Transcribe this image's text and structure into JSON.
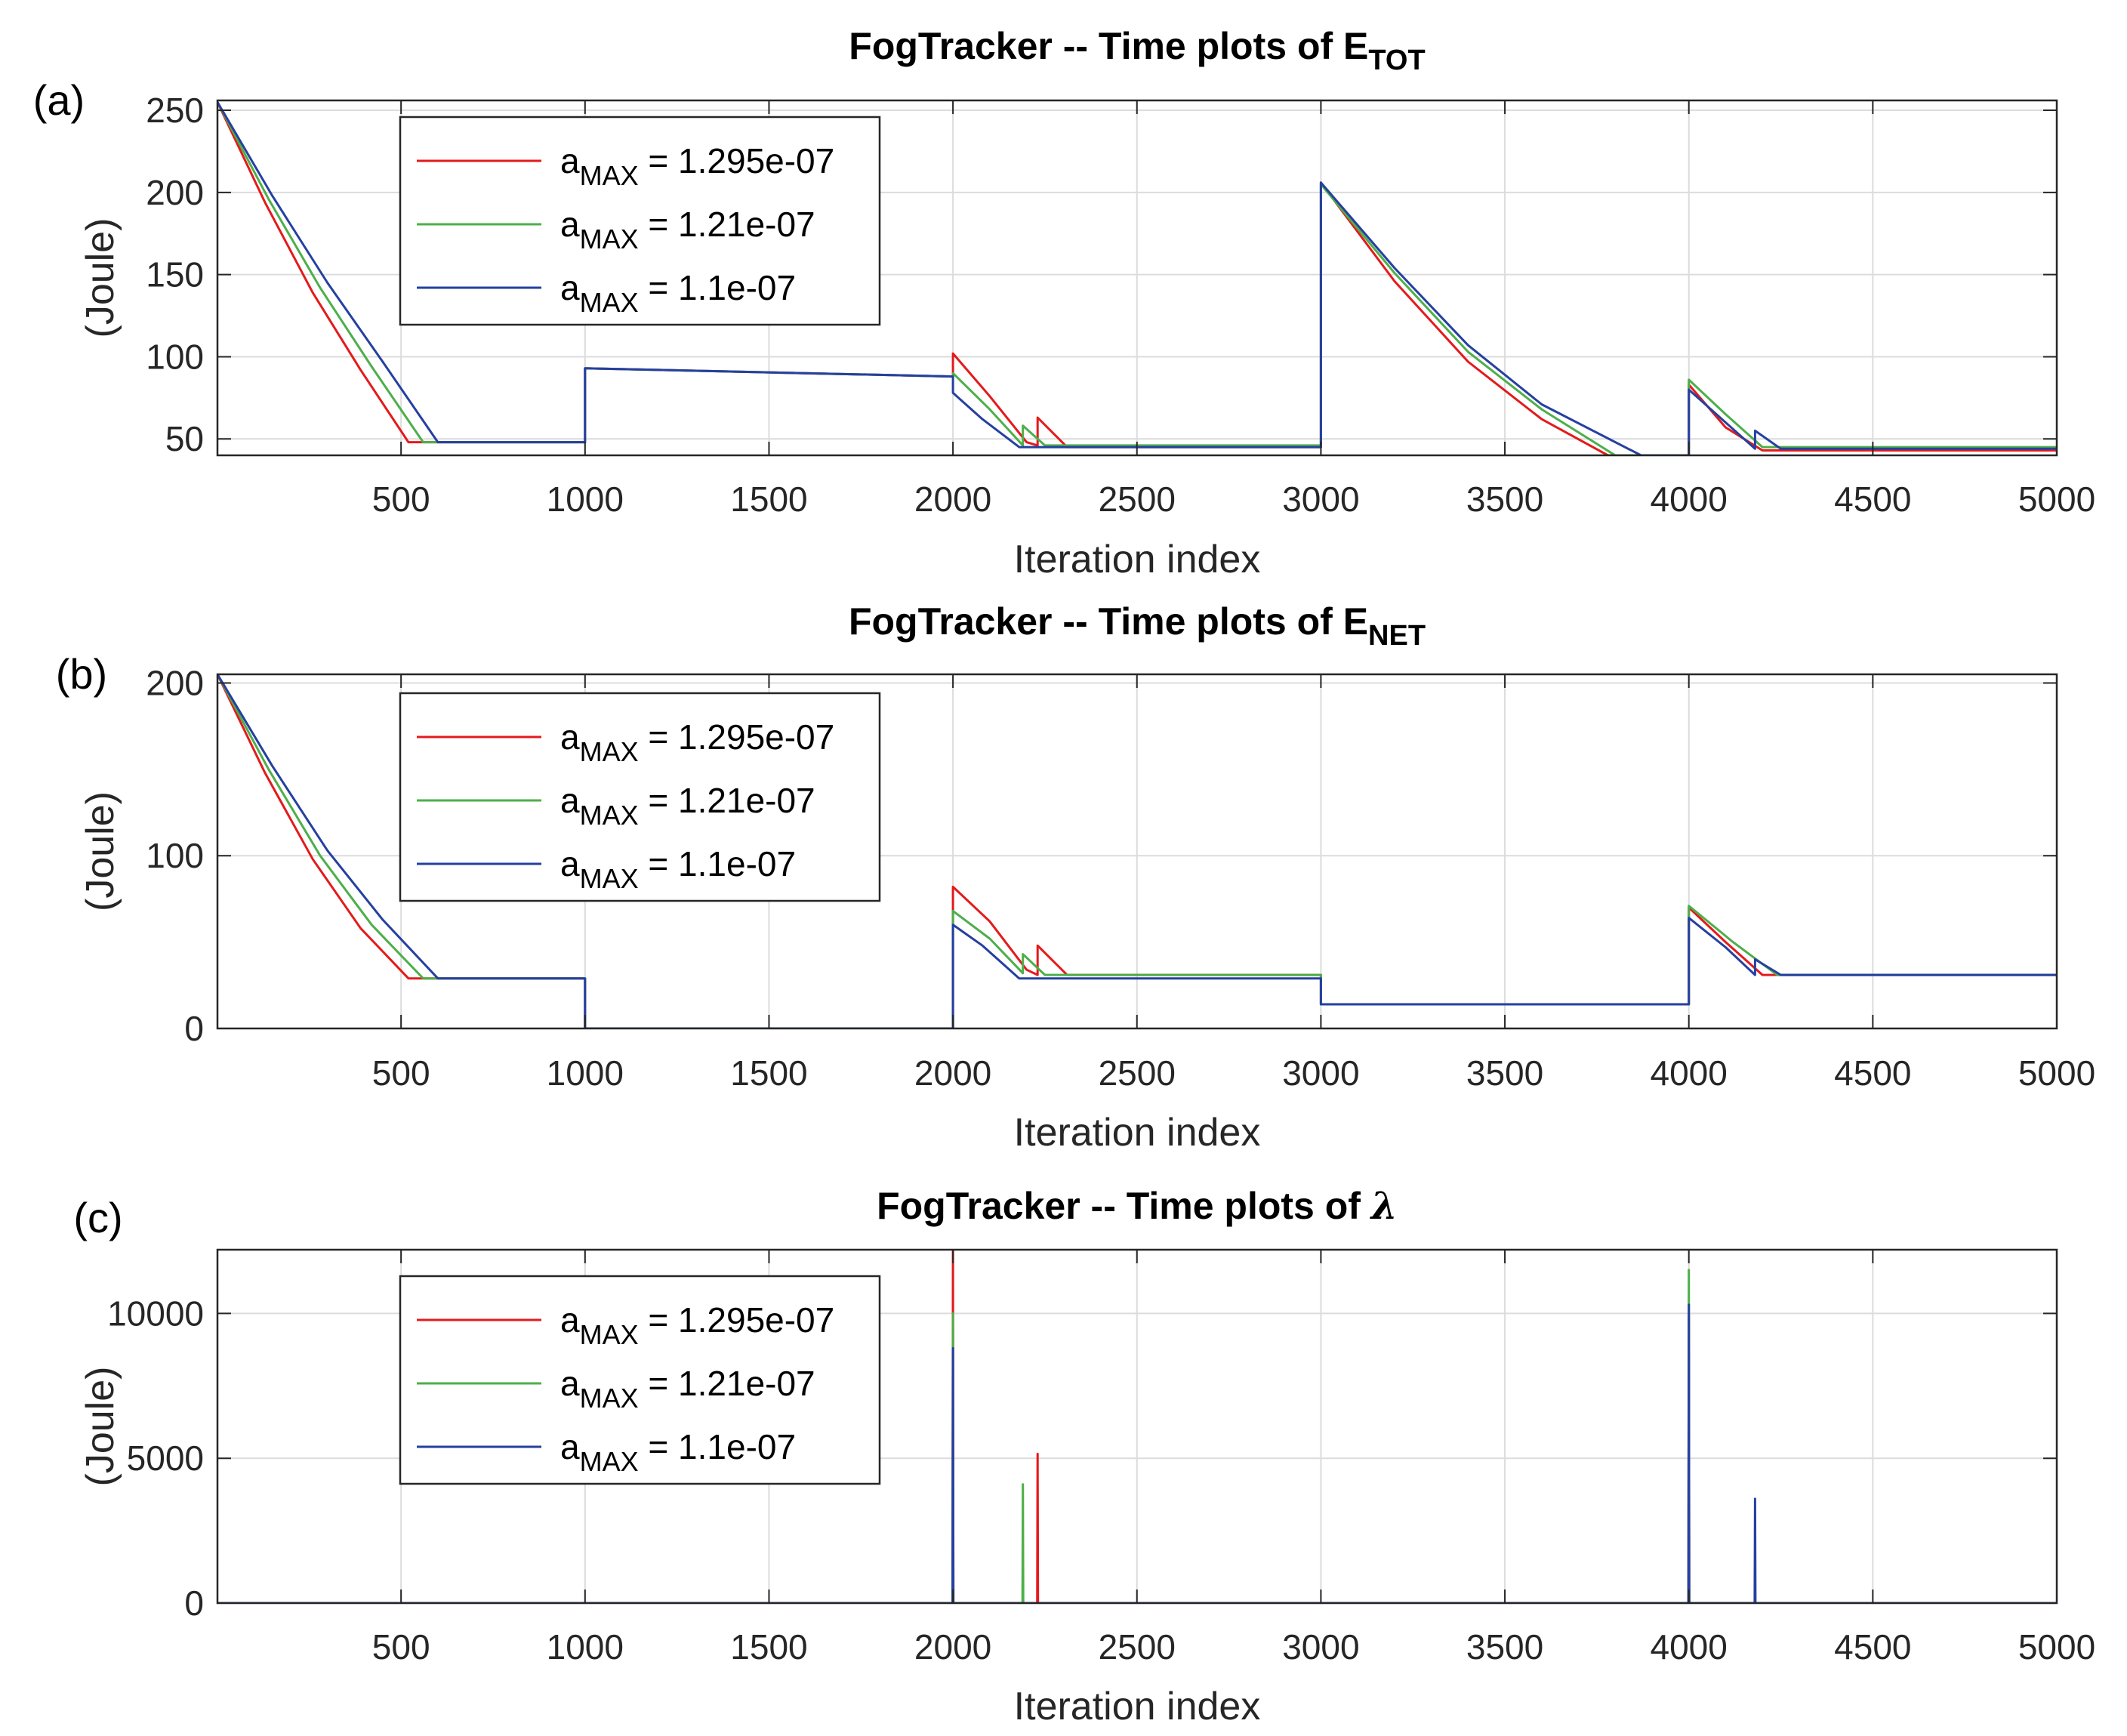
{
  "chart_data": [
    {
      "panel_label": "(a)",
      "type": "line",
      "title": {
        "main": "FogTracker -- Time plots of E",
        "sub": "TOT"
      },
      "xlabel": "Iteration index",
      "ylabel": "(Joule)",
      "xlim": [
        1,
        5000
      ],
      "ylim": [
        40,
        256
      ],
      "xticks": [
        500,
        1000,
        1500,
        2000,
        2500,
        3000,
        3500,
        4000,
        4500,
        5000
      ],
      "xtick_labels": [
        "500",
        "1000",
        "1500",
        "2000",
        "2500",
        "3000",
        "3500",
        "4000",
        "4500",
        "5000"
      ],
      "yticks": [
        50,
        100,
        150,
        200,
        250
      ],
      "ytick_labels": [
        "50",
        "100",
        "150",
        "200",
        "250"
      ],
      "grid": true,
      "legend_position": "top-left",
      "series": [
        {
          "name": "aMAX = 1.295e-07",
          "legend": {
            "sym": "a",
            "sub": "MAX",
            "rest": " = 1.295e-07"
          },
          "color": "#e41a1c",
          "points": [
            [
              1,
              255
            ],
            [
              130,
              194
            ],
            [
              260,
              139
            ],
            [
              390,
              92
            ],
            [
              520,
              48
            ],
            [
              1000,
              48
            ],
            [
              1000,
              93
            ],
            [
              2000,
              88
            ],
            [
              2000,
              102
            ],
            [
              2100,
              76
            ],
            [
              2200,
              48
            ],
            [
              2230,
              46
            ],
            [
              2230,
              63
            ],
            [
              2310,
              45
            ],
            [
              3000,
              45
            ],
            [
              3000,
              206
            ],
            [
              3200,
              146
            ],
            [
              3400,
              97
            ],
            [
              3600,
              62
            ],
            [
              3780,
              40
            ],
            [
              4000,
              40
            ],
            [
              4000,
              83
            ],
            [
              4100,
              57
            ],
            [
              4200,
              43
            ],
            [
              5000,
              43
            ]
          ]
        },
        {
          "name": "aMAX = 1.21e-07",
          "legend": {
            "sym": "a",
            "sub": "MAX",
            "rest": " = 1.21e-07"
          },
          "color": "#4daf4a",
          "points": [
            [
              1,
              255
            ],
            [
              140,
              196
            ],
            [
              280,
              142
            ],
            [
              420,
              94
            ],
            [
              560,
              48
            ],
            [
              1000,
              48
            ],
            [
              1000,
              93
            ],
            [
              2000,
              88
            ],
            [
              2000,
              90
            ],
            [
              2100,
              68
            ],
            [
              2190,
              46
            ],
            [
              2190,
              58
            ],
            [
              2250,
              46
            ],
            [
              3000,
              46
            ],
            [
              3000,
              205
            ],
            [
              3200,
              151
            ],
            [
              3400,
              103
            ],
            [
              3600,
              68
            ],
            [
              3800,
              40
            ],
            [
              4000,
              40
            ],
            [
              4000,
              86
            ],
            [
              4100,
              65
            ],
            [
              4200,
              45
            ],
            [
              5000,
              45
            ]
          ]
        },
        {
          "name": "aMAX = 1.1e-07",
          "legend": {
            "sym": "a",
            "sub": "MAX",
            "rest": " = 1.1e-07"
          },
          "color": "#2540a0",
          "points": [
            [
              1,
              255
            ],
            [
              150,
              198
            ],
            [
              300,
              145
            ],
            [
              450,
              97
            ],
            [
              600,
              48
            ],
            [
              1000,
              48
            ],
            [
              1000,
              93
            ],
            [
              2000,
              88
            ],
            [
              2000,
              78
            ],
            [
              2080,
              62
            ],
            [
              2180,
              45
            ],
            [
              3000,
              45
            ],
            [
              3000,
              206
            ],
            [
              3200,
              154
            ],
            [
              3400,
              107
            ],
            [
              3600,
              71
            ],
            [
              3870,
              40
            ],
            [
              4000,
              40
            ],
            [
              4000,
              80
            ],
            [
              4100,
              60
            ],
            [
              4180,
              44
            ],
            [
              4180,
              55
            ],
            [
              4250,
              44
            ],
            [
              5000,
              44
            ]
          ]
        }
      ]
    },
    {
      "panel_label": "(b)",
      "type": "line",
      "title": {
        "main": "FogTracker -- Time plots of E",
        "sub": "NET"
      },
      "xlabel": "Iteration index",
      "ylabel": "(Joule)",
      "xlim": [
        1,
        5000
      ],
      "ylim": [
        0,
        205
      ],
      "xticks": [
        500,
        1000,
        1500,
        2000,
        2500,
        3000,
        3500,
        4000,
        4500,
        5000
      ],
      "xtick_labels": [
        "500",
        "1000",
        "1500",
        "2000",
        "2500",
        "3000",
        "3500",
        "4000",
        "4500",
        "5000"
      ],
      "yticks": [
        0,
        100,
        200
      ],
      "ytick_labels": [
        "0",
        "100",
        "200"
      ],
      "grid": true,
      "legend_position": "top-left",
      "series": [
        {
          "name": "aMAX = 1.295e-07",
          "legend": {
            "sym": "a",
            "sub": "MAX",
            "rest": " = 1.295e-07"
          },
          "color": "#e41a1c",
          "points": [
            [
              1,
              205
            ],
            [
              130,
              148
            ],
            [
              260,
              98
            ],
            [
              390,
              58
            ],
            [
              520,
              29
            ],
            [
              1000,
              29
            ],
            [
              1000,
              0
            ],
            [
              2000,
              0
            ],
            [
              2000,
              82
            ],
            [
              2100,
              62
            ],
            [
              2200,
              34
            ],
            [
              2230,
              31
            ],
            [
              2230,
              48
            ],
            [
              2310,
              31
            ],
            [
              3000,
              31
            ],
            [
              3000,
              14
            ],
            [
              4000,
              14
            ],
            [
              4000,
              70
            ],
            [
              4100,
              50
            ],
            [
              4200,
              31
            ],
            [
              5000,
              31
            ]
          ]
        },
        {
          "name": "aMAX = 1.21e-07",
          "legend": {
            "sym": "a",
            "sub": "MAX",
            "rest": " = 1.21e-07"
          },
          "color": "#4daf4a",
          "points": [
            [
              1,
              205
            ],
            [
              140,
              150
            ],
            [
              280,
              100
            ],
            [
              420,
              60
            ],
            [
              560,
              29
            ],
            [
              1000,
              29
            ],
            [
              1000,
              0
            ],
            [
              2000,
              0
            ],
            [
              2000,
              68
            ],
            [
              2100,
              52
            ],
            [
              2190,
              32
            ],
            [
              2190,
              43
            ],
            [
              2250,
              31
            ],
            [
              3000,
              31
            ],
            [
              3000,
              14
            ],
            [
              4000,
              14
            ],
            [
              4000,
              71
            ],
            [
              4120,
              50
            ],
            [
              4240,
              31
            ],
            [
              5000,
              31
            ]
          ]
        },
        {
          "name": "aMAX = 1.1e-07",
          "legend": {
            "sym": "a",
            "sub": "MAX",
            "rest": " = 1.1e-07"
          },
          "color": "#2540a0",
          "points": [
            [
              1,
              205
            ],
            [
              150,
              152
            ],
            [
              300,
              103
            ],
            [
              450,
              63
            ],
            [
              600,
              29
            ],
            [
              1000,
              29
            ],
            [
              1000,
              0
            ],
            [
              2000,
              0
            ],
            [
              2000,
              60
            ],
            [
              2080,
              48
            ],
            [
              2180,
              29
            ],
            [
              3000,
              29
            ],
            [
              3000,
              14
            ],
            [
              4000,
              14
            ],
            [
              4000,
              64
            ],
            [
              4100,
              47
            ],
            [
              4180,
              31
            ],
            [
              4180,
              40
            ],
            [
              4250,
              31
            ],
            [
              5000,
              31
            ]
          ]
        }
      ]
    },
    {
      "panel_label": "(c)",
      "type": "line",
      "title": {
        "main": "FogTracker -- Time plots of ",
        "sym": "λ"
      },
      "xlabel": "Iteration index",
      "ylabel": "(Joule)",
      "xlim": [
        1,
        5000
      ],
      "ylim": [
        0,
        12200
      ],
      "xticks": [
        500,
        1000,
        1500,
        2000,
        2500,
        3000,
        3500,
        4000,
        4500,
        5000
      ],
      "xtick_labels": [
        "500",
        "1000",
        "1500",
        "2000",
        "2500",
        "3000",
        "3500",
        "4000",
        "4500",
        "5000"
      ],
      "yticks": [
        0,
        5000,
        10000
      ],
      "ytick_labels": [
        "0",
        "5000",
        "10000"
      ],
      "grid": true,
      "legend_position": "top-left",
      "series": [
        {
          "name": "aMAX = 1.295e-07",
          "legend": {
            "sym": "a",
            "sub": "MAX",
            "rest": " = 1.295e-07"
          },
          "color": "#e41a1c",
          "points": [
            [
              1,
              0
            ],
            [
              1999,
              0
            ],
            [
              2000,
              12200
            ],
            [
              2001,
              0
            ],
            [
              2229,
              0
            ],
            [
              2230,
              5150
            ],
            [
              2231,
              0
            ],
            [
              3999,
              0
            ],
            [
              4000,
              9900
            ],
            [
              4001,
              0
            ],
            [
              5000,
              0
            ]
          ]
        },
        {
          "name": "aMAX = 1.21e-07",
          "legend": {
            "sym": "a",
            "sub": "MAX",
            "rest": " = 1.21e-07"
          },
          "color": "#4daf4a",
          "points": [
            [
              1,
              0
            ],
            [
              1999,
              0
            ],
            [
              2000,
              10000
            ],
            [
              2001,
              0
            ],
            [
              2189,
              0
            ],
            [
              2190,
              4100
            ],
            [
              2191,
              0
            ],
            [
              3999,
              0
            ],
            [
              4000,
              11500
            ],
            [
              4001,
              0
            ],
            [
              5000,
              0
            ]
          ]
        },
        {
          "name": "aMAX = 1.1e-07",
          "legend": {
            "sym": "a",
            "sub": "MAX",
            "rest": " = 1.1e-07"
          },
          "color": "#2540a0",
          "points": [
            [
              1,
              0
            ],
            [
              1999,
              0
            ],
            [
              2000,
              8800
            ],
            [
              2001,
              0
            ],
            [
              3999,
              0
            ],
            [
              4000,
              10300
            ],
            [
              4001,
              0
            ],
            [
              4179,
              0
            ],
            [
              4180,
              3600
            ],
            [
              4181,
              0
            ],
            [
              5000,
              0
            ]
          ]
        }
      ]
    }
  ]
}
